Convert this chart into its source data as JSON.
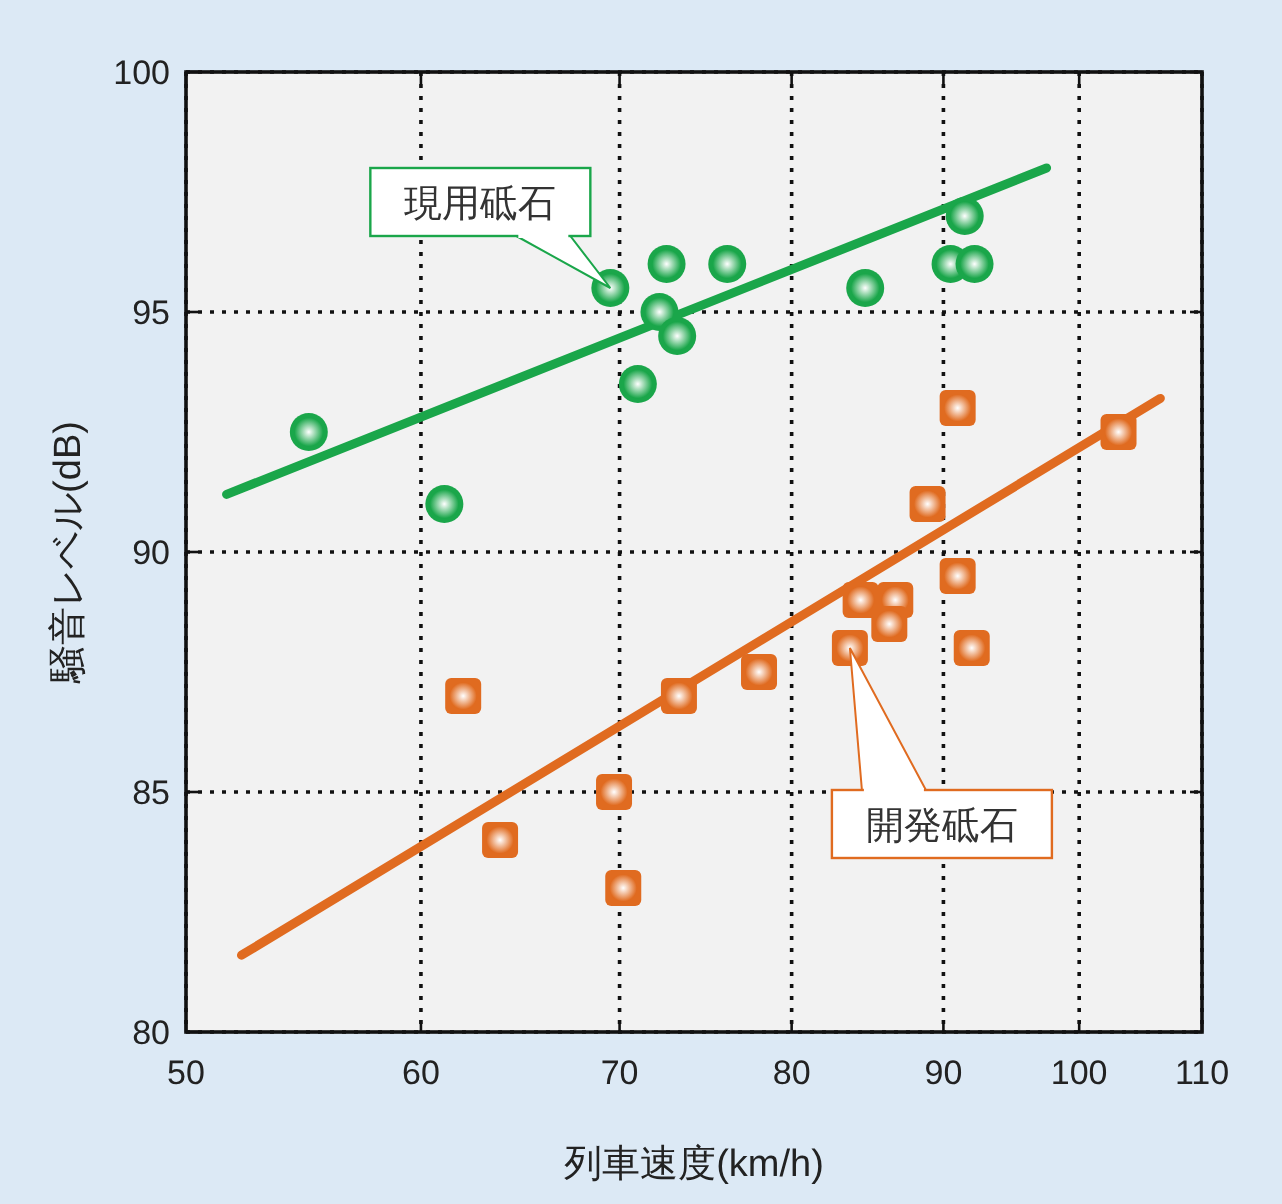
{
  "chart_data": {
    "type": "scatter",
    "xlabel": "列車速度(km/h)",
    "ylabel": "騒音レベル(dB)",
    "log": "x",
    "grid": true,
    "xlim": [
      50,
      110
    ],
    "xticks": [
      50,
      60,
      70,
      80,
      90,
      100,
      110
    ],
    "ylim": [
      80,
      100
    ],
    "yticks": [
      80,
      85,
      90,
      95,
      100
    ],
    "series": [
      {
        "name": "現用砥石",
        "color": "#1aa64a",
        "marker": "circle",
        "x": [
          55.0,
          61.1,
          69.5,
          72.6,
          76.1,
          72.2,
          73.2,
          71.0,
          84.7,
          91.5,
          90.5,
          92.2
        ],
        "values": [
          92.5,
          91.0,
          95.5,
          96.0,
          96.0,
          95.0,
          94.5,
          93.5,
          95.5,
          97.0,
          96.0,
          96.0
        ]
      },
      {
        "name": "開発砥石",
        "color": "#e06b20",
        "marker": "square",
        "x": [
          62.0,
          63.8,
          69.7,
          70.2,
          73.3,
          78.0,
          83.7,
          84.4,
          86.7,
          86.3,
          88.9,
          91.0,
          91.0,
          92.0,
          103.1
        ],
        "values": [
          87.0,
          84.0,
          85.0,
          83.0,
          87.0,
          87.5,
          88.0,
          89.0,
          89.0,
          88.5,
          91.0,
          93.0,
          89.5,
          88.0,
          92.5
        ]
      },
      {
        "type": "line",
        "color": "#1aa64a",
        "x": [
          51.6,
          97.5
        ],
        "values": [
          91.2,
          98.0
        ]
      },
      {
        "type": "line",
        "color": "#e06b20",
        "x": [
          52.2,
          106.5
        ],
        "values": [
          81.6,
          93.2
        ]
      }
    ]
  }
}
